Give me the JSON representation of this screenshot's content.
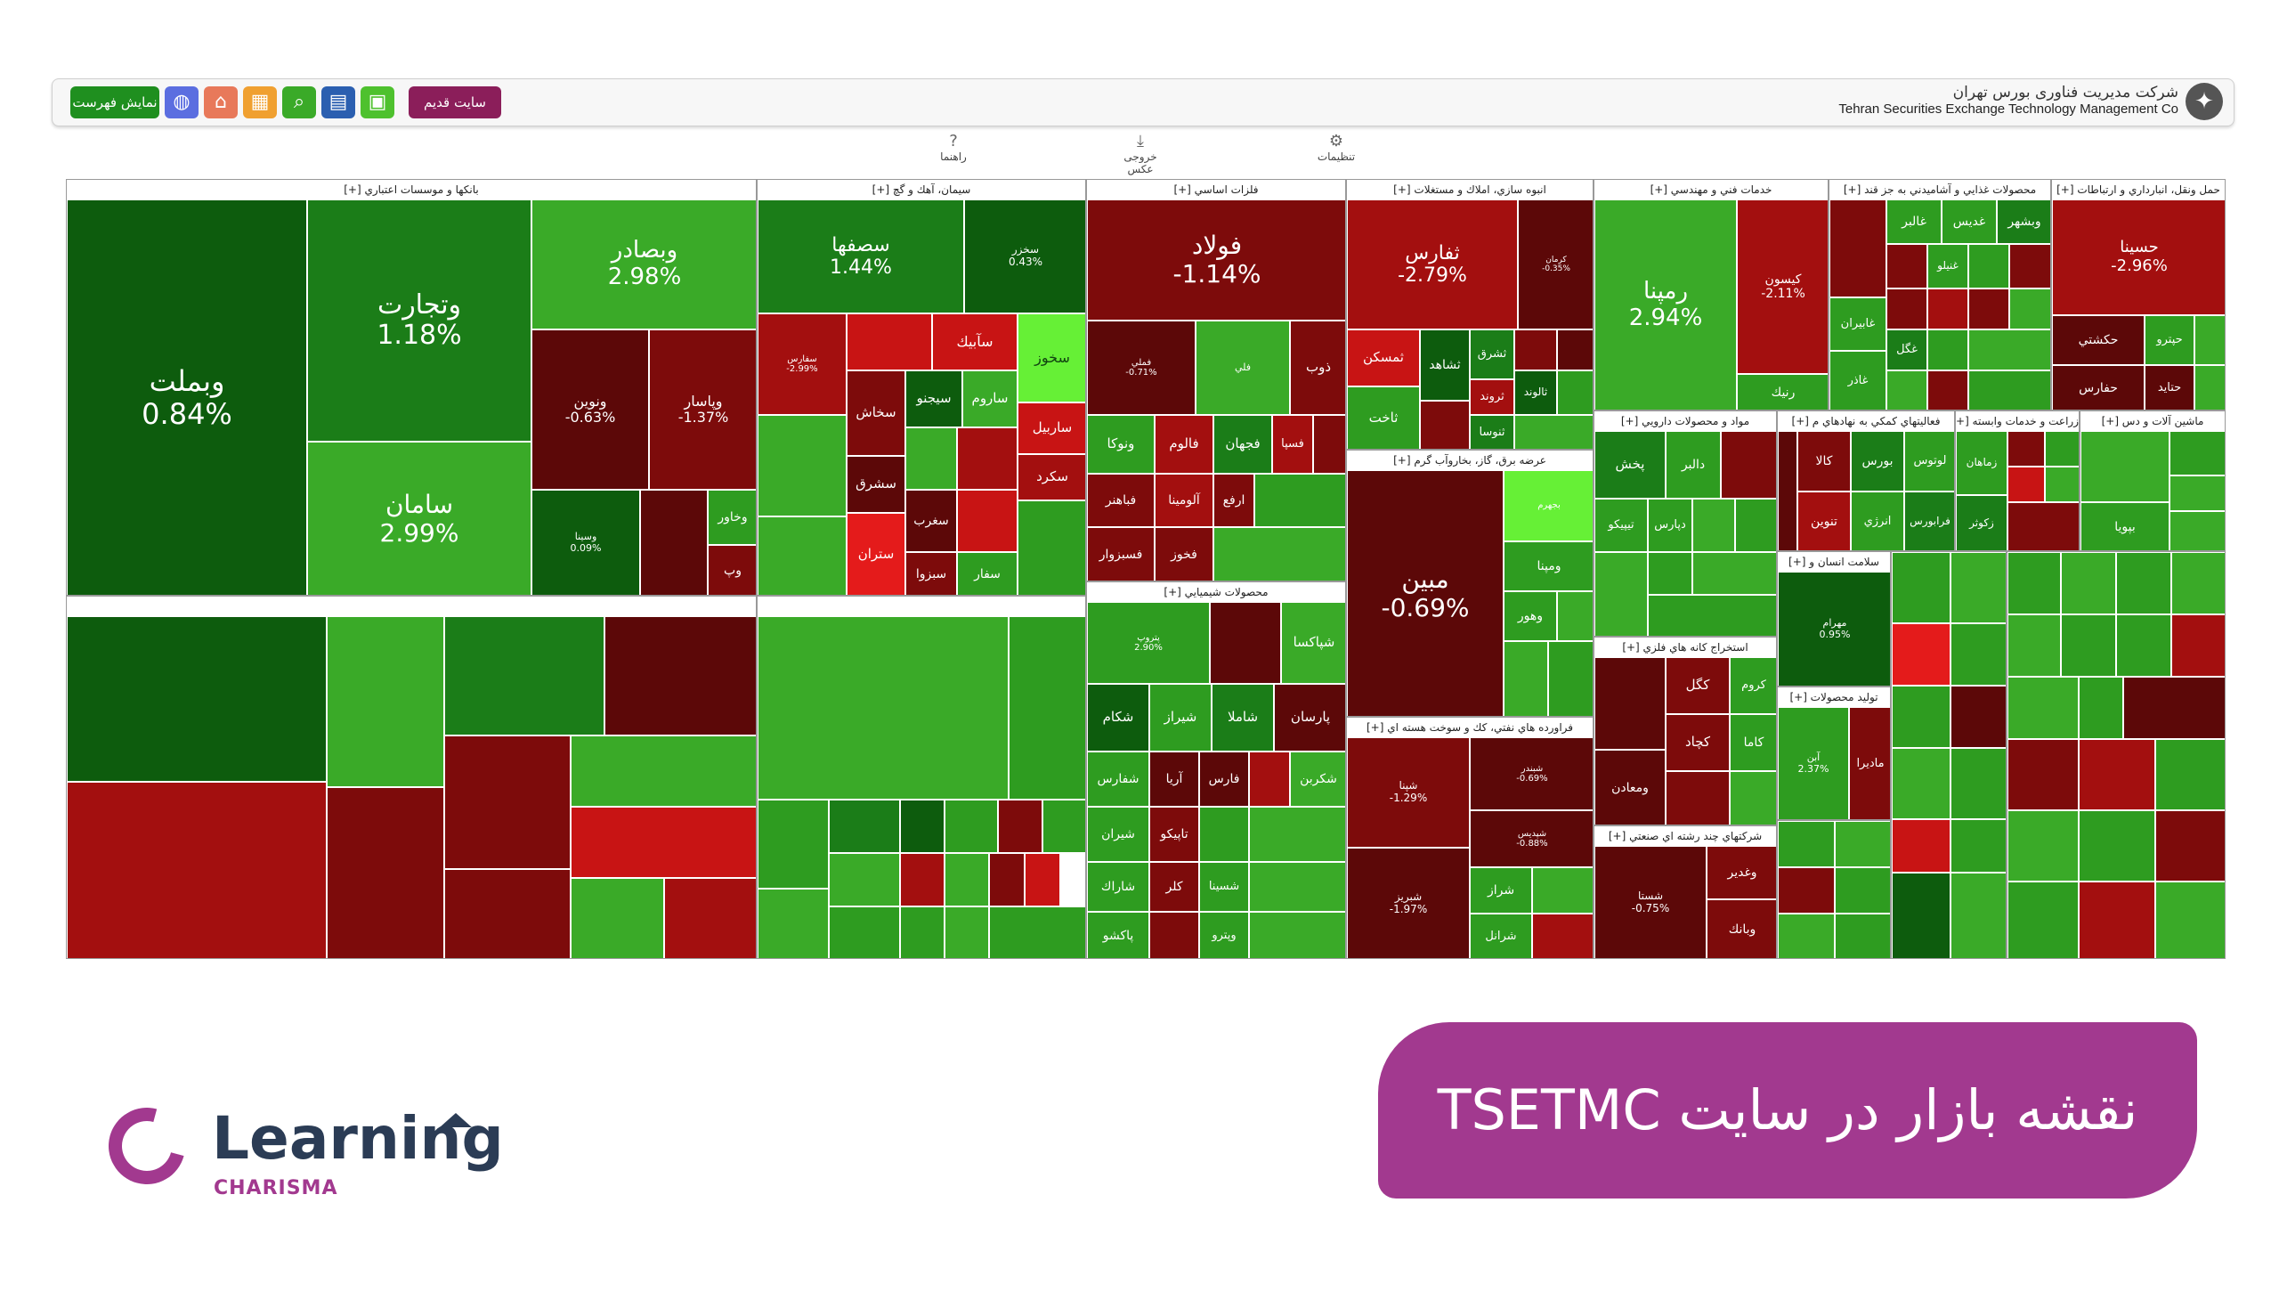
{
  "header": {
    "company_fa": "شرکت مدیریت فناوری بورس تهران",
    "company_en": "Tehran Securities Exchange Technology Management Co",
    "show_list_btn": "نمایش فهرست",
    "old_site_btn": "سایت قدیم",
    "guide_label": "راهنما",
    "export_label": "خروجی عکس",
    "settings_label": "تنظیمات",
    "icons": [
      "globe-icon",
      "home-icon",
      "table-icon",
      "search-icon",
      "chart-icon",
      "grid-icon"
    ],
    "icon_colors": [
      "#5b6ee0",
      "#e8795a",
      "#f0a030",
      "#3aaa28",
      "#2b5fb0",
      "#4ec12e"
    ]
  },
  "treemap": {
    "sectors": [
      {
        "title": "بانکها و موسسات اعتباري [+]",
        "tiles": [
          {
            "name": "وبملت",
            "pct": "0.84%"
          },
          {
            "name": "وتجارت",
            "pct": "1.18%"
          },
          {
            "name": "وبصادر",
            "pct": "2.98%"
          },
          {
            "name": "سامان",
            "pct": "2.99%"
          },
          {
            "name": "ونوين",
            "pct": "-0.63%"
          },
          {
            "name": "وپاسار",
            "pct": "-1.37%"
          },
          {
            "name": "وسينا",
            "pct": "0.09%"
          },
          {
            "name": "وخاور",
            "pct": ""
          },
          {
            "name": "وپ",
            "pct": ""
          }
        ]
      },
      {
        "title": "سيمان، آهك و گچ [+]",
        "tiles": [
          {
            "name": "سصفها",
            "pct": "1.44%"
          },
          {
            "name": "سخزر",
            "pct": "0.43%"
          },
          {
            "name": "سفارس",
            "pct": "-2.99%"
          },
          {
            "name": "سآبيك",
            "pct": ""
          },
          {
            "name": "سخوز",
            "pct": ""
          },
          {
            "name": "سخاش",
            "pct": ""
          },
          {
            "name": "سيجنو",
            "pct": ""
          },
          {
            "name": "ساروم",
            "pct": ""
          },
          {
            "name": "ساربيل",
            "pct": ""
          },
          {
            "name": "سكرد",
            "pct": ""
          },
          {
            "name": "سشرق",
            "pct": ""
          },
          {
            "name": "سغرب",
            "pct": ""
          },
          {
            "name": "ستران",
            "pct": ""
          },
          {
            "name": "سبزوا",
            "pct": ""
          },
          {
            "name": "سفار",
            "pct": ""
          }
        ]
      },
      {
        "title": "فلزات اساسي [+]",
        "tiles": [
          {
            "name": "فولاد",
            "pct": "-1.14%"
          },
          {
            "name": "فملي",
            "pct": "-0.71%"
          },
          {
            "name": "فلي",
            "pct": ""
          },
          {
            "name": "ذوب",
            "pct": ""
          },
          {
            "name": "ونوكا",
            "pct": ""
          },
          {
            "name": "فالوم",
            "pct": ""
          },
          {
            "name": "فجهان",
            "pct": ""
          },
          {
            "name": "فسپا",
            "pct": ""
          },
          {
            "name": "فباهنر",
            "pct": ""
          },
          {
            "name": "آلومينا",
            "pct": ""
          },
          {
            "name": "ارفع",
            "pct": ""
          },
          {
            "name": "فسبزوار",
            "pct": ""
          },
          {
            "name": "فخوز",
            "pct": ""
          }
        ]
      },
      {
        "title": "محصولات شيميايي [+]",
        "tiles": [
          {
            "name": "پتروپ",
            "pct": "2.90%"
          },
          {
            "name": "شپاكسا",
            "pct": ""
          },
          {
            "name": "شكام",
            "pct": ""
          },
          {
            "name": "شيراز",
            "pct": ""
          },
          {
            "name": "شاملا",
            "pct": ""
          },
          {
            "name": "پارسان",
            "pct": ""
          },
          {
            "name": "شفارس",
            "pct": ""
          },
          {
            "name": "آريا",
            "pct": ""
          },
          {
            "name": "فارس",
            "pct": ""
          },
          {
            "name": "شكربن",
            "pct": ""
          },
          {
            "name": "شيران",
            "pct": ""
          },
          {
            "name": "تاپيكو",
            "pct": ""
          },
          {
            "name": "شاراك",
            "pct": ""
          },
          {
            "name": "كلر",
            "pct": ""
          },
          {
            "name": "شسينا",
            "pct": ""
          },
          {
            "name": "پاكشو",
            "pct": ""
          },
          {
            "name": "وپترو",
            "pct": ""
          }
        ]
      },
      {
        "title": "انبوه سازي، املاك و مستغلات [+]",
        "tiles": [
          {
            "name": "ثفارس",
            "pct": "-2.79%"
          },
          {
            "name": "كرمان",
            "pct": "-0.35%"
          },
          {
            "name": "ثمسكن",
            "pct": ""
          },
          {
            "name": "ثشاهد",
            "pct": ""
          },
          {
            "name": "ثشرق",
            "pct": ""
          },
          {
            "name": "ثاخت",
            "pct": ""
          },
          {
            "name": "ثروند",
            "pct": ""
          },
          {
            "name": "ثنوسا",
            "pct": ""
          },
          {
            "name": "ثالوند",
            "pct": ""
          }
        ]
      },
      {
        "title": "عرضه برق، گاز، بخاروآب گرم [+]",
        "tiles": [
          {
            "name": "مبين",
            "pct": "-0.69%"
          },
          {
            "name": "بجهرم",
            "pct": ""
          },
          {
            "name": "ومپنا",
            "pct": ""
          },
          {
            "name": "وهور",
            "pct": ""
          }
        ]
      },
      {
        "title": "فراورده هاي نفتي، كك و سوخت هسته اي [+]",
        "tiles": [
          {
            "name": "شپنا",
            "pct": "-1.29%"
          },
          {
            "name": "شبريز",
            "pct": "-1.97%"
          },
          {
            "name": "شبندر",
            "pct": "-0.69%"
          },
          {
            "name": "شپدیس",
            "pct": "-0.88%"
          },
          {
            "name": "شراز",
            "pct": ""
          },
          {
            "name": "شرانل",
            "pct": ""
          }
        ]
      },
      {
        "title": "خدمات فني و مهندسي [+]",
        "tiles": [
          {
            "name": "رمپنا",
            "pct": "2.94%"
          },
          {
            "name": "كيسون",
            "pct": "-2.11%"
          },
          {
            "name": "رنيك",
            "pct": ""
          }
        ]
      },
      {
        "title": "مواد و محصولات دارويي [+]",
        "tiles": [
          {
            "name": "پخش",
            "pct": ""
          },
          {
            "name": "دالبر",
            "pct": ""
          },
          {
            "name": "تيپيكو",
            "pct": ""
          },
          {
            "name": "دپارس",
            "pct": ""
          }
        ]
      },
      {
        "title": "استخراج كانه هاي فلزي [+]",
        "tiles": [
          {
            "name": "كگل",
            "pct": ""
          },
          {
            "name": "كچاد",
            "pct": ""
          },
          {
            "name": "كاما",
            "pct": ""
          },
          {
            "name": "ومعادن",
            "pct": ""
          },
          {
            "name": "كروم",
            "pct": ""
          }
        ]
      },
      {
        "title": "شركتهاي چند رشته اي صنعتي [+]",
        "tiles": [
          {
            "name": "شستا",
            "pct": "-0.75%"
          },
          {
            "name": "وغدير",
            "pct": ""
          },
          {
            "name": "وبانك",
            "pct": ""
          }
        ]
      },
      {
        "title": "محصولات غذايي و آشاميدني به جز قند [+]",
        "tiles": [
          {
            "name": "غالبر",
            "pct": ""
          },
          {
            "name": "غديس",
            "pct": ""
          },
          {
            "name": "وبشهر",
            "pct": ""
          },
          {
            "name": "غنيلو",
            "pct": ""
          },
          {
            "name": "غابيران",
            "pct": ""
          },
          {
            "name": "غگل",
            "pct": ""
          },
          {
            "name": "غاذر",
            "pct": ""
          }
        ]
      },
      {
        "title": "فعاليتهاي كمكي به نهادهاي م [+]",
        "tiles": [
          {
            "name": "كالا",
            "pct": ""
          },
          {
            "name": "بورس",
            "pct": ""
          },
          {
            "name": "لوتوس",
            "pct": ""
          },
          {
            "name": "تنوين",
            "pct": ""
          },
          {
            "name": "انرژي",
            "pct": ""
          },
          {
            "name": "فرابورس",
            "pct": ""
          }
        ]
      },
      {
        "title": "سلامت انسان و [+]",
        "tiles": [
          {
            "name": "مهرام",
            "pct": "0.95%"
          }
        ]
      },
      {
        "title": "توليد محصولات [+]",
        "tiles": [
          {
            "name": "مادیرا",
            "pct": ""
          },
          {
            "name": "آبن",
            "pct": "2.37%"
          }
        ]
      },
      {
        "title": "حمل ونقل، انبارداري و ارتباطات [+]",
        "tiles": [
          {
            "name": "حسينا",
            "pct": "-2.96%"
          },
          {
            "name": "حكشتي",
            "pct": ""
          },
          {
            "name": "حپترو",
            "pct": ""
          },
          {
            "name": "حفارس",
            "pct": ""
          },
          {
            "name": "حتايد",
            "pct": ""
          }
        ]
      },
      {
        "title": "زراعت و خدمات وابسته [+]",
        "tiles": [
          {
            "name": "زماهان",
            "pct": ""
          },
          {
            "name": "زكوثر",
            "pct": ""
          }
        ]
      },
      {
        "title": "ماشين آلات و دس [+]",
        "tiles": [
          {
            "name": "بپويا",
            "pct": ""
          }
        ]
      }
    ]
  },
  "banner": {
    "text": "نقشه بازار در سایت TSETMC"
  },
  "brand": {
    "word": "Learning",
    "sub": "CHARISMA",
    "colors": {
      "purple": "#a2398f",
      "navy": "#2b3c55"
    }
  }
}
